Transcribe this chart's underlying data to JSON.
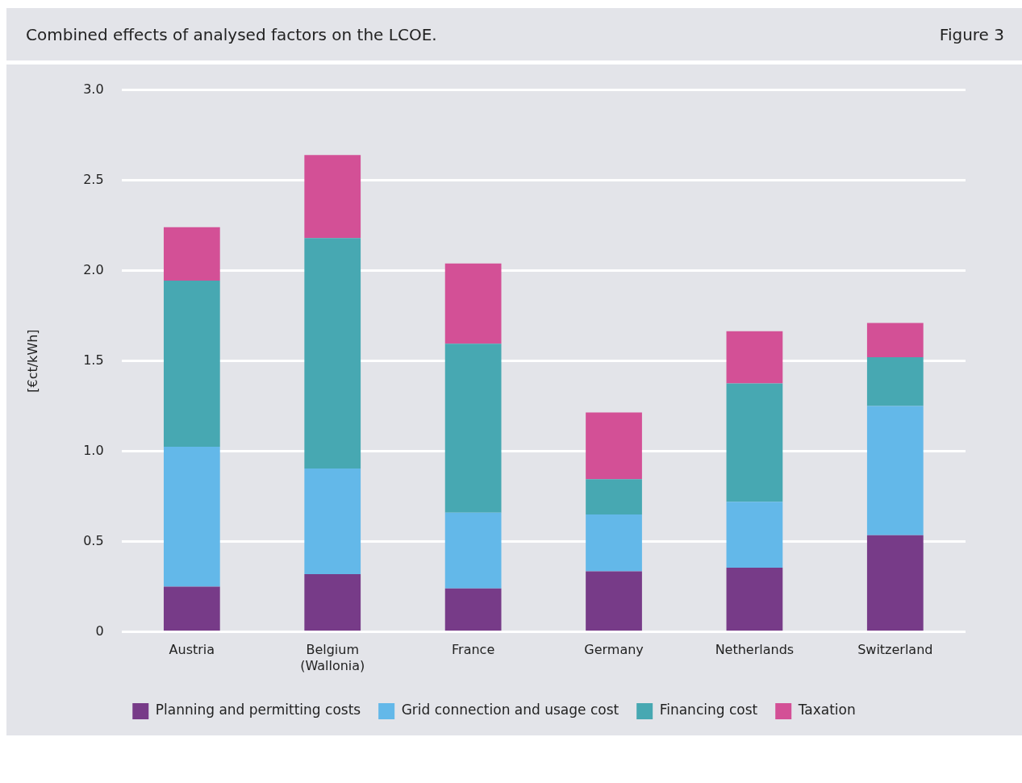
{
  "chart_data": {
    "type": "bar",
    "title": "Combined effects of analysed factors on the LCOE.",
    "annotations": [
      "Figure 3"
    ],
    "ylabel": "[€ct/kWh]",
    "categories": [
      "Austria",
      "Belgium\n(Wallonia)",
      "France",
      "Germany",
      "Netherlands",
      "Switzerland"
    ],
    "series": [
      {
        "name": "Planning and permitting costs",
        "color": "#773b88",
        "values": [
          0.25,
          0.32,
          0.24,
          0.335,
          0.355,
          0.535
        ]
      },
      {
        "name": "Grid connection and usage cost",
        "color": "#63b8e9",
        "values": [
          0.775,
          0.585,
          0.42,
          0.315,
          0.365,
          0.715
        ]
      },
      {
        "name": "Financing cost",
        "color": "#47a8b2",
        "values": [
          0.92,
          1.275,
          0.935,
          0.195,
          0.655,
          0.27
        ]
      },
      {
        "name": "Taxation",
        "color": "#d35096",
        "values": [
          0.295,
          0.46,
          0.445,
          0.37,
          0.29,
          0.19
        ]
      }
    ],
    "stacked": true,
    "ylim": [
      0,
      3
    ],
    "yticks": [
      0,
      {
        "value": 0.5,
        "label": "0.5"
      },
      {
        "value": 1,
        "label": "1.0"
      },
      {
        "value": 1.5,
        "label": "1.5"
      },
      {
        "value": 2,
        "label": "2.0"
      },
      {
        "value": 2.5,
        "label": "2.5"
      },
      {
        "value": 3,
        "label": "3.0"
      }
    ],
    "grid": "y",
    "legend": "bottom"
  }
}
